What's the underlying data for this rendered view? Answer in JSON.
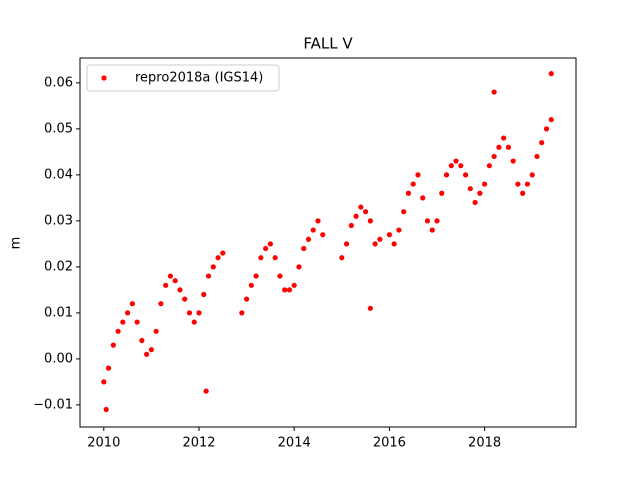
{
  "chart_data": {
    "type": "scatter",
    "title": "FALL V",
    "y_label": "m",
    "series": [
      {
        "name": "repro2018a (IGS14)",
        "color": "#ff0000",
        "x": [
          2010.0,
          2010.05,
          2010.1,
          2010.2,
          2010.3,
          2010.4,
          2010.5,
          2010.6,
          2010.7,
          2010.8,
          2010.9,
          2011.0,
          2011.1,
          2011.2,
          2011.3,
          2011.4,
          2011.5,
          2011.6,
          2011.7,
          2011.8,
          2011.9,
          2012.0,
          2012.1,
          2012.15,
          2012.2,
          2012.3,
          2012.4,
          2012.5,
          2012.9,
          2013.0,
          2013.1,
          2013.2,
          2013.3,
          2013.4,
          2013.5,
          2013.6,
          2013.7,
          2013.8,
          2013.9,
          2014.0,
          2014.1,
          2014.2,
          2014.3,
          2014.4,
          2014.5,
          2014.6,
          2015.0,
          2015.1,
          2015.2,
          2015.3,
          2015.4,
          2015.5,
          2015.6,
          2015.6,
          2015.7,
          2015.8,
          2016.0,
          2016.1,
          2016.2,
          2016.3,
          2016.4,
          2016.5,
          2016.6,
          2016.7,
          2016.8,
          2016.9,
          2017.0,
          2017.1,
          2017.2,
          2017.3,
          2017.4,
          2017.5,
          2017.6,
          2017.7,
          2017.8,
          2017.9,
          2018.0,
          2018.1,
          2018.2,
          2018.2,
          2018.3,
          2018.4,
          2018.5,
          2018.6,
          2018.7,
          2018.8,
          2018.9,
          2019.0,
          2019.1,
          2019.2,
          2019.3,
          2019.4,
          2019.4
        ],
        "values": [
          -0.005,
          -0.011,
          -0.002,
          0.003,
          0.006,
          0.008,
          0.01,
          0.012,
          0.008,
          0.004,
          0.001,
          0.002,
          0.006,
          0.012,
          0.016,
          0.018,
          0.017,
          0.015,
          0.013,
          0.01,
          0.008,
          0.01,
          0.014,
          -0.007,
          0.018,
          0.02,
          0.022,
          0.023,
          0.01,
          0.013,
          0.016,
          0.018,
          0.022,
          0.024,
          0.025,
          0.022,
          0.018,
          0.015,
          0.015,
          0.016,
          0.02,
          0.024,
          0.026,
          0.028,
          0.03,
          0.027,
          0.022,
          0.025,
          0.029,
          0.031,
          0.033,
          0.032,
          0.03,
          0.011,
          0.025,
          0.026,
          0.027,
          0.025,
          0.028,
          0.032,
          0.036,
          0.038,
          0.04,
          0.035,
          0.03,
          0.028,
          0.03,
          0.036,
          0.04,
          0.042,
          0.043,
          0.042,
          0.04,
          0.037,
          0.034,
          0.036,
          0.038,
          0.042,
          0.044,
          0.058,
          0.046,
          0.048,
          0.046,
          0.043,
          0.038,
          0.036,
          0.038,
          0.04,
          0.044,
          0.047,
          0.05,
          0.052,
          0.062
        ]
      }
    ],
    "xlim": [
      2009.5,
      2019.92
    ],
    "ylim": [
      -0.0148,
      0.0654
    ],
    "xticks": [
      2010,
      2012,
      2014,
      2016,
      2018
    ],
    "yticks": [
      {
        "value": -0.01,
        "label": "−0.01"
      },
      {
        "value": 0,
        "label": "0.00"
      },
      0.01,
      0.02,
      0.03,
      0.04,
      0.05,
      0.06
    ],
    "legend": "upper left"
  }
}
